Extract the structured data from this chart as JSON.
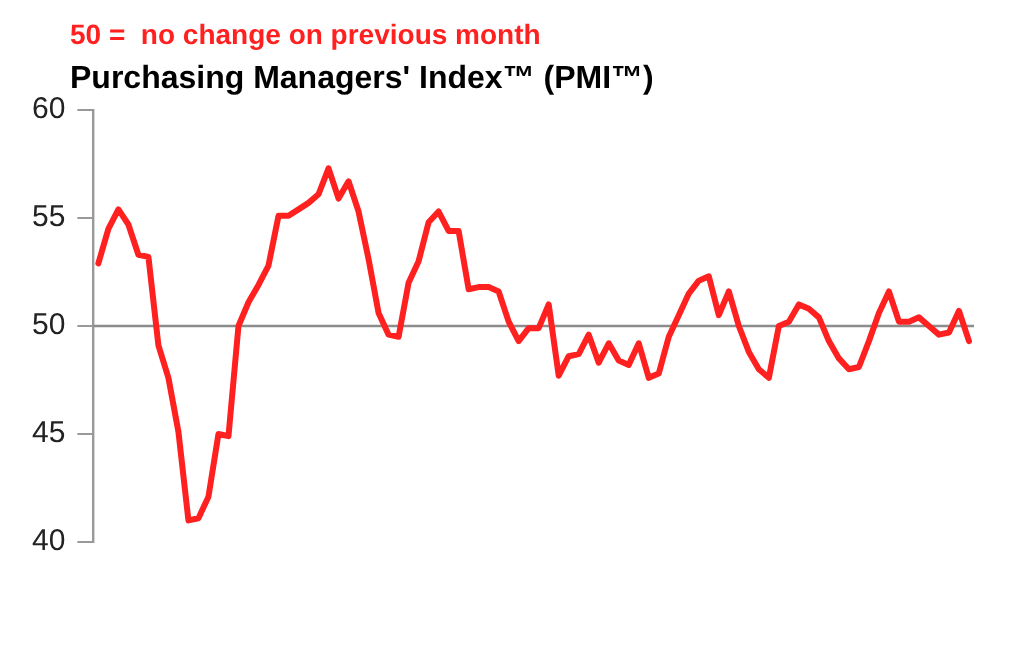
{
  "chart_data": {
    "type": "line",
    "title": "Purchasing Managers' Index™ (PMI™)",
    "annotations": [
      "50 =  no change on previous month"
    ],
    "categories": [
      null,
      null,
      null,
      null,
      null,
      null,
      null,
      null,
      null,
      null,
      null,
      null,
      null,
      null,
      null,
      null,
      null,
      null,
      null,
      null,
      null,
      null,
      null,
      null,
      null,
      null,
      null,
      null,
      null,
      null,
      null,
      null,
      null,
      null,
      null,
      null,
      null,
      null,
      null,
      null,
      null,
      null,
      null,
      null,
      null,
      null,
      null,
      null,
      null,
      null,
      null,
      null,
      null,
      null,
      null,
      null,
      null,
      null,
      null,
      null,
      null,
      null,
      null,
      null,
      null,
      null,
      null,
      null,
      null,
      null,
      null,
      null,
      null,
      null,
      null,
      null,
      null,
      null,
      null,
      null,
      null,
      null,
      null,
      null,
      null,
      null,
      null,
      null
    ],
    "series": [
      {
        "color": "#ff2020",
        "values": [
          52.9,
          54.5,
          55.4,
          54.7,
          53.3,
          53.2,
          49.1,
          47.6,
          45.1,
          41.0,
          41.1,
          42.1,
          45.0,
          44.9,
          50.0,
          51.1,
          51.9,
          52.8,
          55.1,
          55.1,
          55.4,
          55.7,
          56.1,
          57.3,
          55.9,
          56.7,
          55.3,
          53.1,
          50.6,
          49.6,
          49.5,
          52.0,
          53.0,
          54.8,
          55.3,
          54.4,
          54.4,
          51.7,
          51.8,
          51.8,
          51.6,
          50.2,
          49.3,
          49.9,
          49.9,
          51.0,
          47.7,
          48.6,
          48.7,
          49.6,
          48.3,
          49.2,
          48.4,
          48.2,
          49.2,
          47.6,
          47.8,
          49.5,
          50.5,
          51.5,
          52.1,
          52.3,
          50.5,
          51.6,
          50.0,
          48.8,
          48.0,
          47.6,
          50.0,
          50.2,
          51.0,
          50.8,
          50.4,
          49.3,
          48.5,
          48.0,
          48.1,
          49.3,
          50.6,
          51.6,
          50.2,
          50.2,
          50.4,
          50.0,
          49.6,
          49.7,
          50.7,
          49.3
        ]
      }
    ],
    "ylim": [
      40,
      60
    ],
    "yticks": [
      40,
      45,
      50,
      55,
      60
    ],
    "grid": false,
    "legend": false,
    "marker": "none",
    "line_style": "solid",
    "ref_lines": [
      {
        "axis": "y",
        "value": 50,
        "color": "#8c8c8c"
      }
    ]
  }
}
